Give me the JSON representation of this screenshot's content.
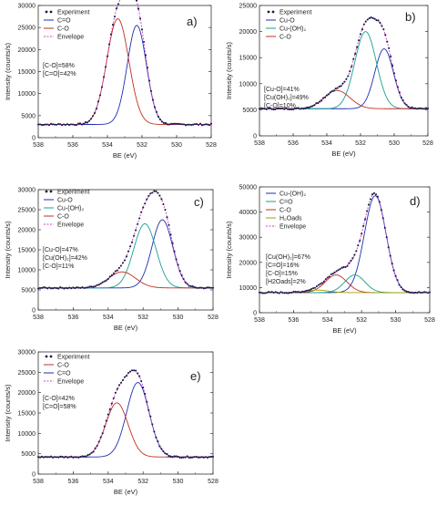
{
  "figure": {
    "colors": {
      "experiment": "#1a1a4a",
      "envelope": "#d040c0",
      "blue": "#1f2fb0",
      "red": "#c03020",
      "green": "#18a090",
      "olive": "#a0a000"
    }
  },
  "chart_data": [
    {
      "panel_label": "a)",
      "type": "line",
      "xlabel": "BE (eV)",
      "ylabel": "Intensity (counts/s)",
      "xlim": [
        538,
        528
      ],
      "ylim": [
        0,
        30000
      ],
      "xticks": [
        538,
        536,
        534,
        532,
        530,
        528
      ],
      "yticks": [
        0,
        5000,
        10000,
        15000,
        20000,
        25000,
        30000
      ],
      "baseline": 3000,
      "legend": [
        {
          "label": "Experiment",
          "kind": "marker"
        },
        {
          "label": "C=O",
          "kind": "line",
          "color": "#1f2fb0"
        },
        {
          "label": "C-O",
          "kind": "line",
          "color": "#c03020"
        },
        {
          "label": "Envelope",
          "kind": "dash",
          "color": "#d040c0"
        }
      ],
      "annotations": [
        "[C-O]=58%",
        "[C=O]=42%"
      ],
      "components": [
        {
          "name": "C=O",
          "color": "#1f2fb0",
          "center": 532.3,
          "height": 22500,
          "fwhm": 1.3
        },
        {
          "name": "C-O",
          "color": "#c03020",
          "center": 533.4,
          "height": 24000,
          "fwhm": 1.5
        }
      ]
    },
    {
      "panel_label": "b)",
      "type": "line",
      "xlabel": "BE (eV)",
      "ylabel": "Intensity (counts/s)",
      "xlim": [
        538,
        528
      ],
      "ylim": [
        0,
        25000
      ],
      "xticks": [
        538,
        536,
        534,
        532,
        530,
        528
      ],
      "yticks": [
        0,
        5000,
        10000,
        15000,
        20000,
        25000
      ],
      "baseline": 5200,
      "legend": [
        {
          "label": "Experiment",
          "kind": "marker"
        },
        {
          "label": "Cu-O",
          "kind": "line",
          "color": "#1f2fb0"
        },
        {
          "label": "Cu-(OH)₂",
          "kind": "line",
          "color": "#18a090"
        },
        {
          "label": "C-O",
          "kind": "line",
          "color": "#c03020"
        }
      ],
      "annotations": [
        "[Cu-O]=41%",
        "[Cu(OH)₂]=49%",
        "[C-O]=10%"
      ],
      "components": [
        {
          "name": "Cu-O",
          "color": "#1f2fb0",
          "center": 530.6,
          "height": 11500,
          "fwhm": 1.3
        },
        {
          "name": "Cu-(OH)₂",
          "color": "#18a090",
          "center": 531.7,
          "height": 14800,
          "fwhm": 1.5
        },
        {
          "name": "C-O",
          "color": "#c03020",
          "center": 533.4,
          "height": 3500,
          "fwhm": 1.8
        }
      ]
    },
    {
      "panel_label": "c)",
      "type": "line",
      "xlabel": "BE (eV)",
      "ylabel": "Intensity (counts/s)",
      "xlim": [
        538,
        528
      ],
      "ylim": [
        0,
        30000
      ],
      "xticks": [
        538,
        536,
        534,
        532,
        530,
        528
      ],
      "yticks": [
        0,
        5000,
        10000,
        15000,
        20000,
        25000,
        30000
      ],
      "baseline": 5500,
      "legend": [
        {
          "label": "Experiment",
          "kind": "marker"
        },
        {
          "label": "Cu-O",
          "kind": "line",
          "color": "#1f2fb0"
        },
        {
          "label": "Cu-(OH)₂",
          "kind": "line",
          "color": "#18a090"
        },
        {
          "label": "C-O",
          "kind": "line",
          "color": "#c03020"
        },
        {
          "label": "Envelope",
          "kind": "dash",
          "color": "#d040c0"
        }
      ],
      "annotations": [
        "[Cu-O]=47%",
        "[Cu(OH)₂]=42%",
        "[C-O]=11%"
      ],
      "components": [
        {
          "name": "Cu-O",
          "color": "#1f2fb0",
          "center": 530.9,
          "height": 17000,
          "fwhm": 1.4
        },
        {
          "name": "Cu-(OH)₂",
          "color": "#18a090",
          "center": 531.9,
          "height": 16000,
          "fwhm": 1.5
        },
        {
          "name": "C-O",
          "color": "#c03020",
          "center": 533.2,
          "height": 4000,
          "fwhm": 1.8
        }
      ]
    },
    {
      "panel_label": "d)",
      "type": "line",
      "xlabel": "BE (eV)",
      "ylabel": "Intensity (counts/s)",
      "xlim": [
        538,
        528
      ],
      "ylim": [
        0,
        50000
      ],
      "xticks": [
        538,
        536,
        534,
        532,
        530,
        528
      ],
      "yticks": [
        0,
        10000,
        20000,
        30000,
        40000,
        50000
      ],
      "baseline": 8000,
      "legend": [
        {
          "label": "Cu-(OH)₂",
          "kind": "line",
          "color": "#1f2fb0"
        },
        {
          "label": "C=O",
          "kind": "line",
          "color": "#18a090"
        },
        {
          "label": "C-O",
          "kind": "line",
          "color": "#c03020"
        },
        {
          "label": "H₂Oads",
          "kind": "line",
          "color": "#a0a000"
        },
        {
          "label": "Envelope",
          "kind": "dash",
          "color": "#d040c0"
        }
      ],
      "annotations": [
        "[Cu(OH)₂]=67%",
        "[C=O]=16%",
        "[C-O]=15%",
        "[H2Oads]=2%"
      ],
      "components": [
        {
          "name": "Cu-(OH)₂",
          "color": "#1f2fb0",
          "center": 531.2,
          "height": 38500,
          "fwhm": 1.5
        },
        {
          "name": "C=O",
          "color": "#18a090",
          "center": 532.4,
          "height": 7000,
          "fwhm": 1.4
        },
        {
          "name": "C-O",
          "color": "#c03020",
          "center": 533.5,
          "height": 7000,
          "fwhm": 1.5
        },
        {
          "name": "H₂Oads",
          "color": "#a0a000",
          "center": 534.6,
          "height": 1000,
          "fwhm": 1.5
        }
      ]
    },
    {
      "panel_label": "e)",
      "type": "line",
      "xlabel": "BE (eV)",
      "ylabel": "Intensity (counts/s)",
      "xlim": [
        538,
        528
      ],
      "ylim": [
        0,
        30000
      ],
      "xticks": [
        538,
        536,
        534,
        532,
        530,
        528
      ],
      "yticks": [
        0,
        5000,
        10000,
        15000,
        20000,
        25000,
        30000
      ],
      "baseline": 4200,
      "legend": [
        {
          "label": "Experiment",
          "kind": "marker"
        },
        {
          "label": "C-O",
          "kind": "line",
          "color": "#c03020"
        },
        {
          "label": "C=O",
          "kind": "line",
          "color": "#1f2fb0"
        },
        {
          "label": "Envelope",
          "kind": "dash",
          "color": "#d040c0"
        }
      ],
      "annotations": [
        "[C-O]=42%",
        "[C=O]=58%"
      ],
      "components": [
        {
          "name": "C=O",
          "color": "#1f2fb0",
          "center": 532.3,
          "height": 18300,
          "fwhm": 1.5
        },
        {
          "name": "C-O",
          "color": "#c03020",
          "center": 533.5,
          "height": 13300,
          "fwhm": 1.5
        }
      ]
    }
  ]
}
